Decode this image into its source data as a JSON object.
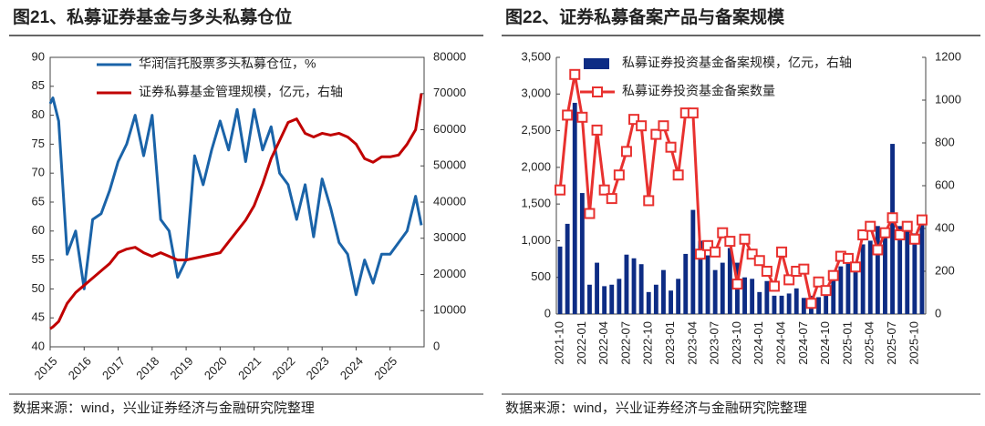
{
  "chart_data": [
    {
      "type": "line",
      "title": "图21、私募证券基金与多头私募仓位",
      "source": "数据来源：wind，兴业证券经济与金融研究院整理",
      "x": [
        2015.0,
        2015.08,
        2015.25,
        2015.5,
        2015.75,
        2016.0,
        2016.25,
        2016.5,
        2016.75,
        2017.0,
        2017.25,
        2017.5,
        2017.75,
        2018.0,
        2018.25,
        2018.5,
        2018.75,
        2019.0,
        2019.25,
        2019.5,
        2019.75,
        2020.0,
        2020.25,
        2020.5,
        2020.75,
        2021.0,
        2021.25,
        2021.5,
        2021.75,
        2022.0,
        2022.25,
        2022.5,
        2022.75,
        2023.0,
        2023.25,
        2023.5,
        2023.75,
        2024.0,
        2024.25,
        2024.5,
        2024.75,
        2025.0,
        2025.25,
        2025.5,
        2025.75,
        2025.92
      ],
      "xlim": [
        2015,
        2026
      ],
      "xticks": [
        2015,
        2016,
        2017,
        2018,
        2019,
        2020,
        2021,
        2022,
        2023,
        2024,
        2025
      ],
      "ylim": [
        40,
        90
      ],
      "yticks": [
        40,
        45,
        50,
        55,
        60,
        65,
        70,
        75,
        80,
        85,
        90
      ],
      "y2lim": [
        0,
        80000
      ],
      "y2ticks": [
        0,
        10000,
        20000,
        30000,
        40000,
        50000,
        60000,
        70000,
        80000
      ],
      "series": [
        {
          "name": "华润信托股票多头私募仓位，%",
          "color": "#1a63a8",
          "type": "line",
          "values": [
            82,
            83,
            79,
            56,
            60,
            50,
            62,
            63,
            67,
            72,
            75,
            80,
            73,
            80,
            62,
            60,
            52,
            55,
            73,
            68,
            74,
            79,
            74,
            81,
            72,
            81,
            74,
            78,
            70,
            68,
            62,
            68,
            59,
            69,
            64,
            58,
            56,
            49,
            55,
            51,
            56,
            56,
            58,
            60,
            66,
            61
          ]
        },
        {
          "name": "证券私募基金管理规模，亿元，右轴",
          "color": "#c00000",
          "type": "line",
          "axis": "y2",
          "values": [
            5000,
            5500,
            7000,
            12000,
            15000,
            17000,
            19000,
            21000,
            23000,
            26000,
            27000,
            27500,
            26000,
            25000,
            26000,
            25000,
            24000,
            24000,
            24500,
            25000,
            25500,
            26000,
            29000,
            32000,
            35000,
            39000,
            45000,
            52000,
            57000,
            62000,
            63000,
            59000,
            58000,
            59000,
            58500,
            59000,
            58000,
            56000,
            52000,
            51000,
            52500,
            52500,
            53000,
            56000,
            60000,
            70000
          ]
        }
      ]
    },
    {
      "type": "bar",
      "title": "图22、证券私募备案产品与备案规模",
      "source": "数据来源：wind，兴业证券经济与金融研究院整理",
      "categories": [
        "2021-10",
        null,
        null,
        "2022-01",
        null,
        null,
        "2022-04",
        null,
        null,
        "2022-07",
        null,
        null,
        "2022-10",
        null,
        null,
        "2023-01",
        null,
        null,
        "2023-04",
        null,
        null,
        "2023-07",
        null,
        null,
        "2023-10",
        null,
        null,
        "2024-01",
        null,
        null,
        "2024-04",
        null,
        null,
        "2024-07",
        null,
        null,
        "2024-10",
        null,
        null,
        "2025-01",
        null,
        null,
        "2025-04",
        null,
        null,
        "2025-07",
        null,
        null,
        "2025-10",
        null
      ],
      "ylim": [
        0,
        3500
      ],
      "yticks": [
        0,
        {
          "value": 500,
          "label": "500"
        },
        {
          "value": 1000,
          "label": "1,000"
        },
        {
          "value": 1500,
          "label": "1,500"
        },
        {
          "value": 2000,
          "label": "2,000"
        },
        {
          "value": 2500,
          "label": "2,500"
        },
        {
          "value": 3000,
          "label": "3,000"
        },
        {
          "value": 3500,
          "label": "3,500"
        }
      ],
      "y2lim": [
        0,
        1200
      ],
      "y2ticks": [
        0,
        200,
        400,
        600,
        800,
        1000,
        1200
      ],
      "series": [
        {
          "name": "私募证券投资基金备案规模，亿元，右轴",
          "color": "#0d2c84",
          "type": "bar",
          "values": [
            920,
            1230,
            2880,
            1650,
            400,
            700,
            380,
            400,
            480,
            810,
            760,
            680,
            300,
            400,
            600,
            320,
            480,
            820,
            1420,
            1000,
            800,
            600,
            700,
            900,
            700,
            500,
            480,
            300,
            450,
            250,
            250,
            280,
            350,
            220,
            250,
            230,
            280,
            500,
            650,
            700,
            600,
            950,
            1000,
            1200,
            1100,
            2320,
            1200,
            1250,
            1100,
            1250
          ]
        },
        {
          "name": "私募证券投资基金备案数量",
          "color": "#e8312f",
          "type": "line",
          "axis": "y2",
          "marker": "square",
          "values": [
            580,
            930,
            1120,
            920,
            470,
            860,
            580,
            540,
            650,
            760,
            910,
            880,
            530,
            840,
            880,
            780,
            650,
            940,
            940,
            280,
            320,
            290,
            380,
            340,
            140,
            350,
            280,
            250,
            200,
            130,
            290,
            160,
            200,
            210,
            50,
            150,
            110,
            180,
            270,
            260,
            220,
            370,
            410,
            300,
            380,
            450,
            370,
            410,
            350,
            440
          ]
        }
      ]
    }
  ]
}
